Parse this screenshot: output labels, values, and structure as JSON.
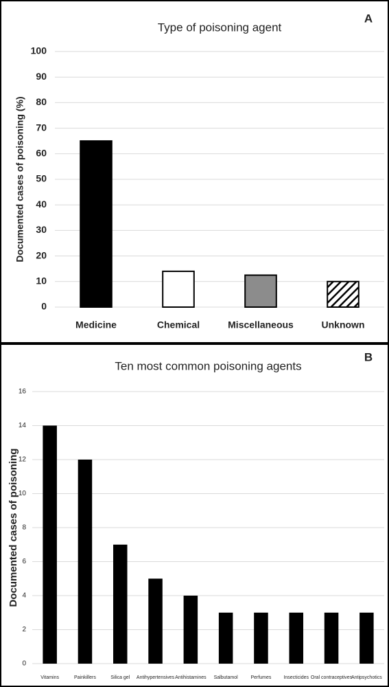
{
  "chart_data": [
    {
      "type": "bar",
      "panel_label": "A",
      "title": "Type of poisoning agent",
      "y_label": "Documented cases of poisoning  (%)",
      "categories": [
        "Medicine",
        "Chemical",
        "Miscellaneous",
        "Unknown"
      ],
      "values": [
        65,
        14,
        12.5,
        10
      ],
      "colors": [
        "#000000",
        "#ffffff",
        "#8c8c8c",
        "#ffffff"
      ],
      "hatch": [
        false,
        false,
        false,
        true
      ],
      "ylim": [
        0,
        100
      ],
      "yticks": [
        0,
        10,
        20,
        30,
        40,
        50,
        60,
        70,
        80,
        90,
        100
      ],
      "grid": true
    },
    {
      "type": "bar",
      "panel_label": "B",
      "title": "Ten most common poisoning agents",
      "y_label": "Documented cases of poisoning",
      "categories": [
        "Vitamins",
        "Painkillers",
        "Silica gel",
        "Antihypertensives",
        "Antihistamines",
        "Salbutamol",
        "Perfumes",
        "Insecticides",
        "Oral contraceptives",
        "Antipsychotics"
      ],
      "values": [
        14,
        12,
        7,
        5,
        4,
        3,
        3,
        3,
        3,
        3
      ],
      "color": "#000000",
      "ylim": [
        0,
        16
      ],
      "yticks": [
        0,
        2,
        4,
        6,
        8,
        10,
        12,
        14,
        16
      ],
      "grid": true
    }
  ]
}
